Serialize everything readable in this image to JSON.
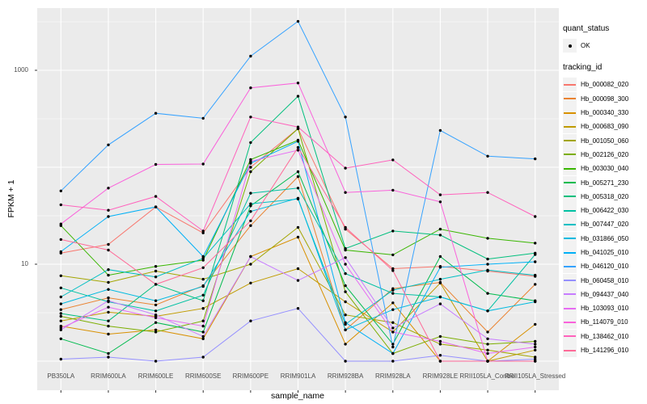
{
  "axes": {
    "y_title": "FPKM + 1",
    "x_title": "sample_name"
  },
  "legend": {
    "quant_status_title": "quant_status",
    "quant_status_items": [
      {
        "label": "OK",
        "shape": "black-point"
      }
    ],
    "tracking_title": "tracking_id"
  },
  "style": {
    "panel_bg": "#EBEBEB",
    "grid_color": "#FFFFFF",
    "tick_color": "#333333",
    "tick_label_color": "#4D4D4D",
    "point_color": "#000000",
    "legend_key_bg": "#F2F2F2"
  },
  "chart_data": {
    "type": "line",
    "xlabel": "sample_name",
    "ylabel": "FPKM + 1",
    "y_scale": "log10",
    "ylim": [
      0.5,
      4500
    ],
    "grid": "on",
    "legend_position": "right",
    "x_categories": [
      "PB350LA",
      "RRIM600LA",
      "RRIM600LE",
      "RRIM600SE",
      "RRIM600PE",
      "RRIM901LA",
      "RRIM928BA",
      "RRIM928LA",
      "RRIM928LE",
      "RRII105LA_Control",
      "RRII105LA_Stressed"
    ],
    "y_ticks": [
      {
        "label": "1000",
        "value": 1000
      },
      {
        "label": "10",
        "value": 10
      }
    ],
    "grid_major_y": [
      1,
      10,
      100,
      1000
    ],
    "grid_minor_y": [
      3.162,
      31.62,
      316.2,
      3162
    ],
    "series": [
      {
        "name": "Hb_000082_020",
        "color": "#F8766D",
        "values": [
          13,
          16,
          39,
          21,
          100,
          250,
          23,
          9,
          9.5,
          8.5,
          7.5
        ]
      },
      {
        "name": "Hb_000098_300",
        "color": "#EA8331",
        "values": [
          3.4,
          4.5,
          3.8,
          6,
          25,
          80,
          2.1,
          5.6,
          6.5,
          2,
          6.2
        ]
      },
      {
        "name": "Hb_000340_330",
        "color": "#D89000",
        "values": [
          2.3,
          1.9,
          2.1,
          1.7,
          12,
          19,
          1.5,
          4,
          1,
          1,
          2.4
        ]
      },
      {
        "name": "Hb_000683_090",
        "color": "#C09B00",
        "values": [
          2.6,
          3.2,
          2.9,
          3.5,
          6.4,
          9,
          4.1,
          2,
          6.4,
          1,
          1.3
        ]
      },
      {
        "name": "Hb_001050_060",
        "color": "#A3A500",
        "values": [
          7.6,
          6.5,
          8.5,
          7,
          10,
          24,
          3,
          2.5,
          1.5,
          1.3,
          1.1
        ]
      },
      {
        "name": "Hb_002126_020",
        "color": "#7CAE00",
        "values": [
          2.9,
          2.3,
          2,
          2.6,
          90,
          250,
          5.2,
          1.2,
          1.8,
          1.5,
          1.6
        ]
      },
      {
        "name": "Hb_003030_040",
        "color": "#39B600",
        "values": [
          25,
          7.7,
          9.5,
          11,
          120,
          190,
          14,
          12.5,
          23,
          18.5,
          16.5
        ]
      },
      {
        "name": "Hb_005271_230",
        "color": "#00BB4E",
        "values": [
          1.7,
          1.2,
          2.5,
          2,
          40,
          90,
          6,
          1.5,
          12,
          5,
          4.2
        ]
      },
      {
        "name": "Hb_005318_020",
        "color": "#00BF7D",
        "values": [
          3.1,
          2.6,
          6.2,
          4.2,
          180,
          540,
          14.5,
          22,
          20,
          11.3,
          13
        ]
      },
      {
        "name": "Hb_006422_030",
        "color": "#00C1A3",
        "values": [
          5.7,
          4.1,
          3.3,
          4.8,
          54,
          61,
          8,
          5,
          4.6,
          3.3,
          12.6
        ]
      },
      {
        "name": "Hb_007447_020",
        "color": "#00BFC4",
        "values": [
          4.6,
          8.8,
          7.4,
          11.5,
          42,
          47,
          2.4,
          5.4,
          7,
          8.7,
          7.7
        ]
      },
      {
        "name": "Hb_031866_050",
        "color": "#00BAE0",
        "values": [
          3.9,
          5.5,
          4.2,
          5.9,
          35,
          48,
          2.1,
          3.4,
          4.6,
          3.3,
          4.1
        ]
      },
      {
        "name": "Hb_041025_010",
        "color": "#00B0F6",
        "values": [
          13.5,
          31,
          39,
          12,
          110,
          185,
          2.5,
          1.2,
          9.3,
          10,
          10.6
        ]
      },
      {
        "name": "Hb_046120_010",
        "color": "#35A2FF",
        "values": [
          57,
          170,
          360,
          320,
          1400,
          3200,
          330,
          1.4,
          240,
          130,
          122
        ]
      },
      {
        "name": "Hb_060458_010",
        "color": "#9590FF",
        "values": [
          1.05,
          1.1,
          1,
          1.1,
          2.6,
          3.5,
          1,
          1,
          1.15,
          1,
          1.05
        ]
      },
      {
        "name": "Hb_094437_040",
        "color": "#C77CFF",
        "values": [
          2.1,
          4.2,
          3,
          1.8,
          12,
          6.8,
          11.7,
          2.2,
          3.9,
          1.7,
          1.5
        ]
      },
      {
        "name": "Hb_103093_010",
        "color": "#E76BF3",
        "values": [
          2.2,
          3.6,
          2.8,
          2.3,
          115,
          150,
          10,
          2,
          1.6,
          1.2,
          1.4
        ]
      },
      {
        "name": "Hb_114079_010",
        "color": "#FA62DB",
        "values": [
          26,
          61,
          107,
          108,
          660,
          740,
          55,
          58,
          44,
          1,
          1
        ]
      },
      {
        "name": "Hb_138462_010",
        "color": "#FF62BC",
        "values": [
          41,
          36,
          50,
          22,
          330,
          260,
          98,
          119,
          52,
          55,
          31
        ]
      },
      {
        "name": "Hb_141296_010",
        "color": "#FF6A98",
        "values": [
          18,
          14,
          6.2,
          9.2,
          28,
          160,
          24,
          8.6,
          1,
          1,
          1
        ]
      }
    ]
  }
}
